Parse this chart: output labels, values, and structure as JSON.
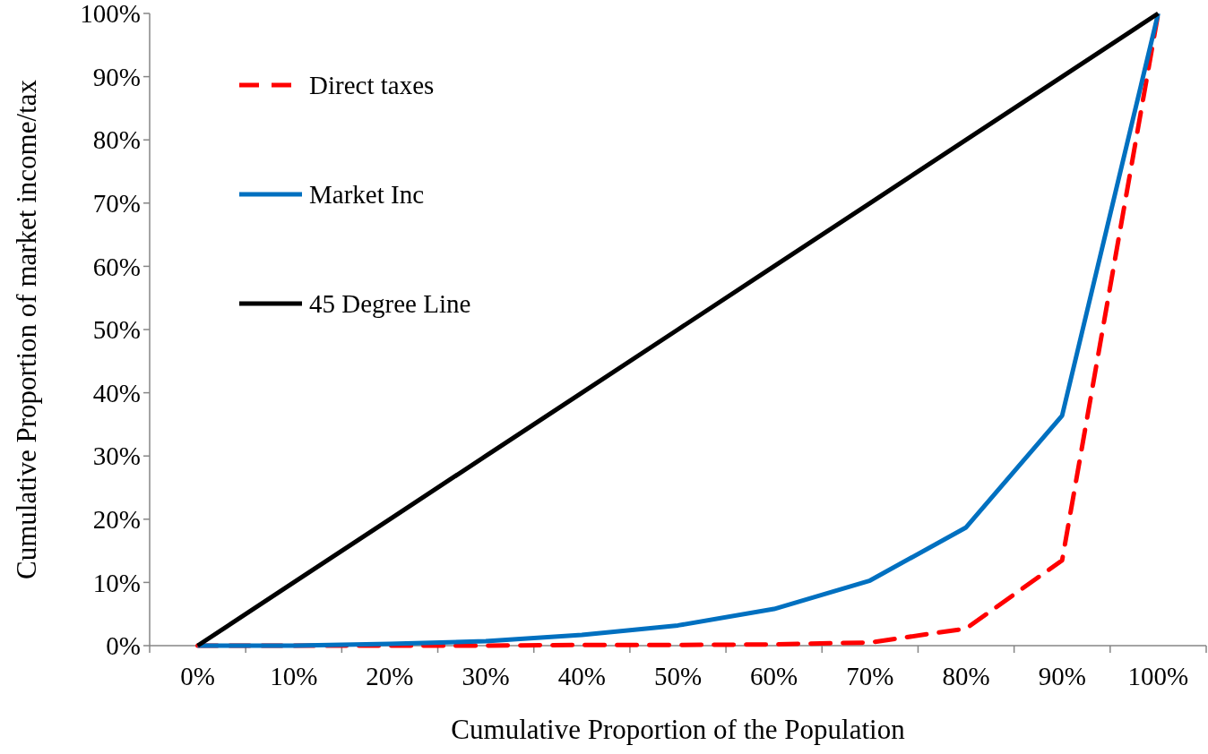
{
  "chart_data": {
    "type": "line",
    "xlabel": "Cumulative Proportion of the Population",
    "ylabel": "Cumulative Proportion of market income/tax",
    "categories": [
      "0%",
      "10%",
      "20%",
      "30%",
      "40%",
      "50%",
      "60%",
      "70%",
      "80%",
      "90%",
      "100%"
    ],
    "ylim": [
      0,
      100
    ],
    "yticks": [
      {
        "value": 0,
        "label": "0%"
      },
      {
        "value": 10,
        "label": "10%"
      },
      {
        "value": 20,
        "label": "20%"
      },
      {
        "value": 30,
        "label": "30%"
      },
      {
        "value": 40,
        "label": "40%"
      },
      {
        "value": 50,
        "label": "50%"
      },
      {
        "value": 60,
        "label": "60%"
      },
      {
        "value": 70,
        "label": "70%"
      },
      {
        "value": 80,
        "label": "80%"
      },
      {
        "value": 90,
        "label": "90%"
      },
      {
        "value": 100,
        "label": "100%"
      }
    ],
    "grid": false,
    "legend": "top left",
    "marker": "none",
    "series": [
      {
        "name": "Direct taxes",
        "color": "#ff0000",
        "line_style": "dashed",
        "values": [
          0,
          0,
          0,
          0,
          0.1,
          0.1,
          0.2,
          0.5,
          2.7,
          13.5,
          100
        ]
      },
      {
        "name": "Market Inc",
        "color": "#0070c0",
        "line_style": "solid",
        "values": [
          0,
          0,
          0.3,
          0.7,
          1.7,
          3.2,
          5.8,
          10.3,
          18.7,
          36.4,
          100
        ]
      },
      {
        "name": "45 Degree Line",
        "color": "#000000",
        "line_style": "solid",
        "values": [
          0,
          10,
          20,
          30,
          40,
          50,
          60,
          70,
          80,
          90,
          100
        ]
      }
    ]
  }
}
